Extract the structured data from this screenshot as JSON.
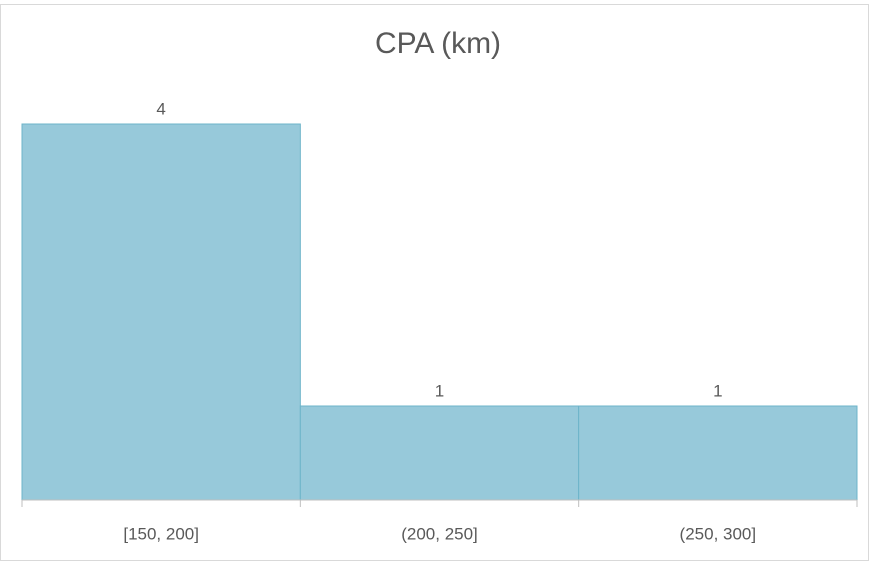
{
  "chart_data": {
    "type": "bar",
    "title": "CPA (km)",
    "categories": [
      "[150, 200]",
      "(200, 250]",
      "(250, 300]"
    ],
    "values": [
      4,
      1,
      1
    ],
    "color": "#97c9da",
    "edge_color": "#6db4c9"
  }
}
